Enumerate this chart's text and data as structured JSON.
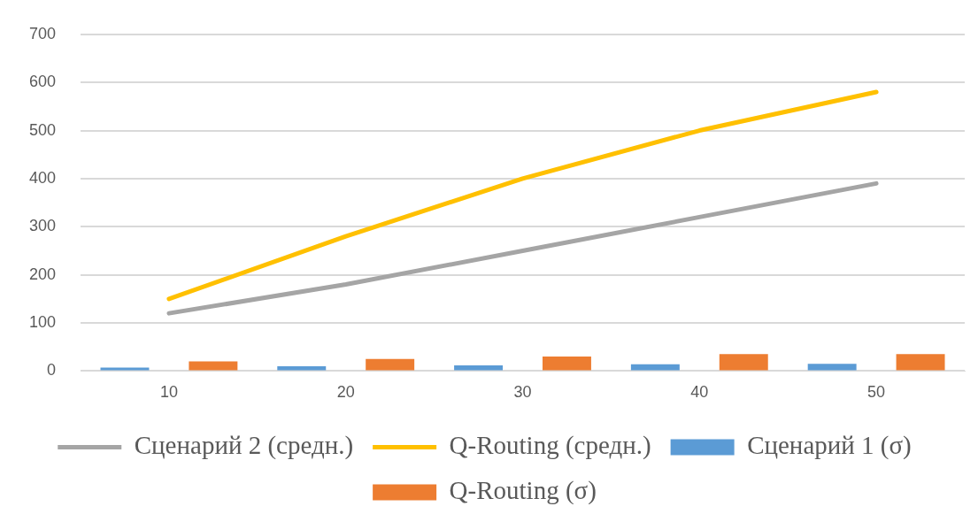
{
  "chart_data": {
    "type": "bar",
    "categories": [
      "10",
      "20",
      "30",
      "40",
      "50"
    ],
    "series": [
      {
        "name": "Сценарий 1 (σ)",
        "color": "#5b9bd5",
        "values": [
          7,
          10,
          12,
          14,
          15
        ]
      },
      {
        "name": "Q-Routing (σ)",
        "color": "#ed7d31",
        "values": [
          20,
          25,
          30,
          35,
          35
        ]
      },
      {
        "name": "Сценарий 2 (средн.)",
        "type": "line",
        "color": "#a5a5a5",
        "values": [
          120,
          180,
          250,
          320,
          390
        ]
      },
      {
        "name": "Q-Routing (средн.)",
        "type": "line",
        "color": "#ffc000",
        "values": [
          150,
          280,
          400,
          500,
          580
        ]
      }
    ],
    "ylim": [
      0,
      700
    ],
    "yticks": [
      0,
      100,
      200,
      300,
      400,
      500,
      600,
      700
    ],
    "grid": "y",
    "legend": "bottom",
    "marker": "none"
  }
}
